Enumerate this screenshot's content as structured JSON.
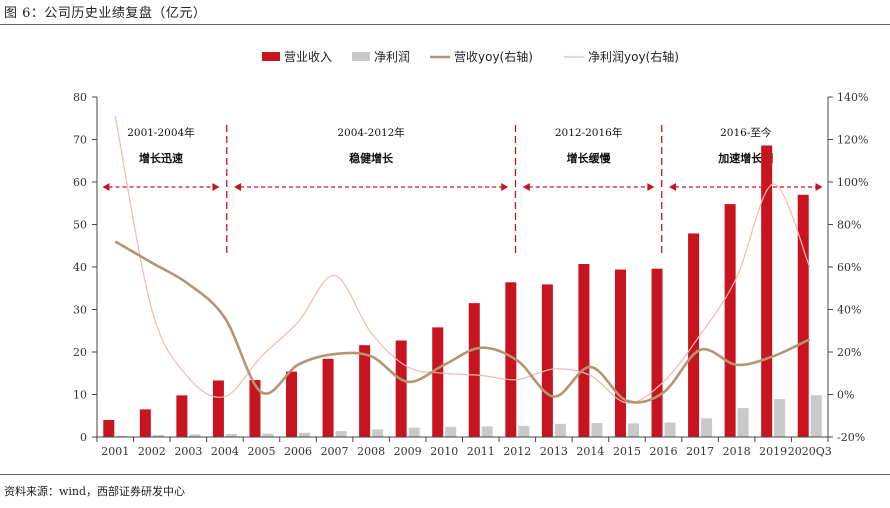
{
  "caption": "图 6：公司历史业绩复盘（亿元）",
  "source": "资料来源：wind，西部证券研发中心",
  "colors": {
    "revenue": "#c8141e",
    "profit": "#c9c9c9",
    "rev_yoy": "#b49474",
    "profit_yoy": "#f2b8b0",
    "annotation": "#c8141e"
  },
  "chart_data": {
    "type": "bar",
    "categories": [
      "2001",
      "2002",
      "2003",
      "2004",
      "2005",
      "2006",
      "2007",
      "2008",
      "2009",
      "2010",
      "2011",
      "2012",
      "2013",
      "2014",
      "2015",
      "2016",
      "2017",
      "2018",
      "2019",
      "2020Q3"
    ],
    "ylim": [
      0,
      80
    ],
    "yticks": [
      0,
      10,
      20,
      30,
      40,
      50,
      60,
      70,
      80
    ],
    "y2lim": [
      -20,
      140
    ],
    "y2ticks": [
      "-20%",
      "0%",
      "20%",
      "40%",
      "60%",
      "80%",
      "100%",
      "120%",
      "140%"
    ],
    "legend_position": "top-center",
    "series": [
      {
        "name": "营业收入",
        "type": "bar",
        "axis": "left",
        "values": [
          4.0,
          6.5,
          9.8,
          13.3,
          13.4,
          15.4,
          18.4,
          21.6,
          22.7,
          25.8,
          31.5,
          36.4,
          35.9,
          40.7,
          39.4,
          39.6,
          47.9,
          54.8,
          68.6,
          57.0
        ]
      },
      {
        "name": "净利润",
        "type": "bar",
        "axis": "left",
        "values": [
          0.3,
          0.5,
          0.6,
          0.7,
          0.8,
          1.0,
          1.4,
          1.8,
          2.2,
          2.4,
          2.5,
          2.6,
          3.1,
          3.3,
          3.2,
          3.4,
          4.4,
          6.8,
          8.9,
          9.8
        ]
      },
      {
        "name": "营收yoy(右轴)",
        "type": "line",
        "axis": "right",
        "values": [
          72,
          62,
          52,
          36,
          1,
          14,
          19,
          18,
          6,
          14,
          22,
          16,
          -1,
          13,
          -3,
          1,
          21,
          14,
          18,
          26
        ]
      },
      {
        "name": "净利润yoy(右轴)",
        "type": "line",
        "axis": "right",
        "values": [
          131,
          40,
          8,
          -1,
          18,
          34,
          56,
          29,
          13,
          10,
          9,
          7,
          12,
          9,
          -4,
          6,
          28,
          55,
          99,
          60
        ]
      }
    ],
    "annotations": [
      {
        "period": "2001-2004年",
        "label": "增长迅速"
      },
      {
        "period": "2004-2012年",
        "label": "稳健增长"
      },
      {
        "period": "2012-2016年",
        "label": "增长缓慢"
      },
      {
        "period": "2016-至今",
        "label": "加速增长期"
      }
    ]
  }
}
